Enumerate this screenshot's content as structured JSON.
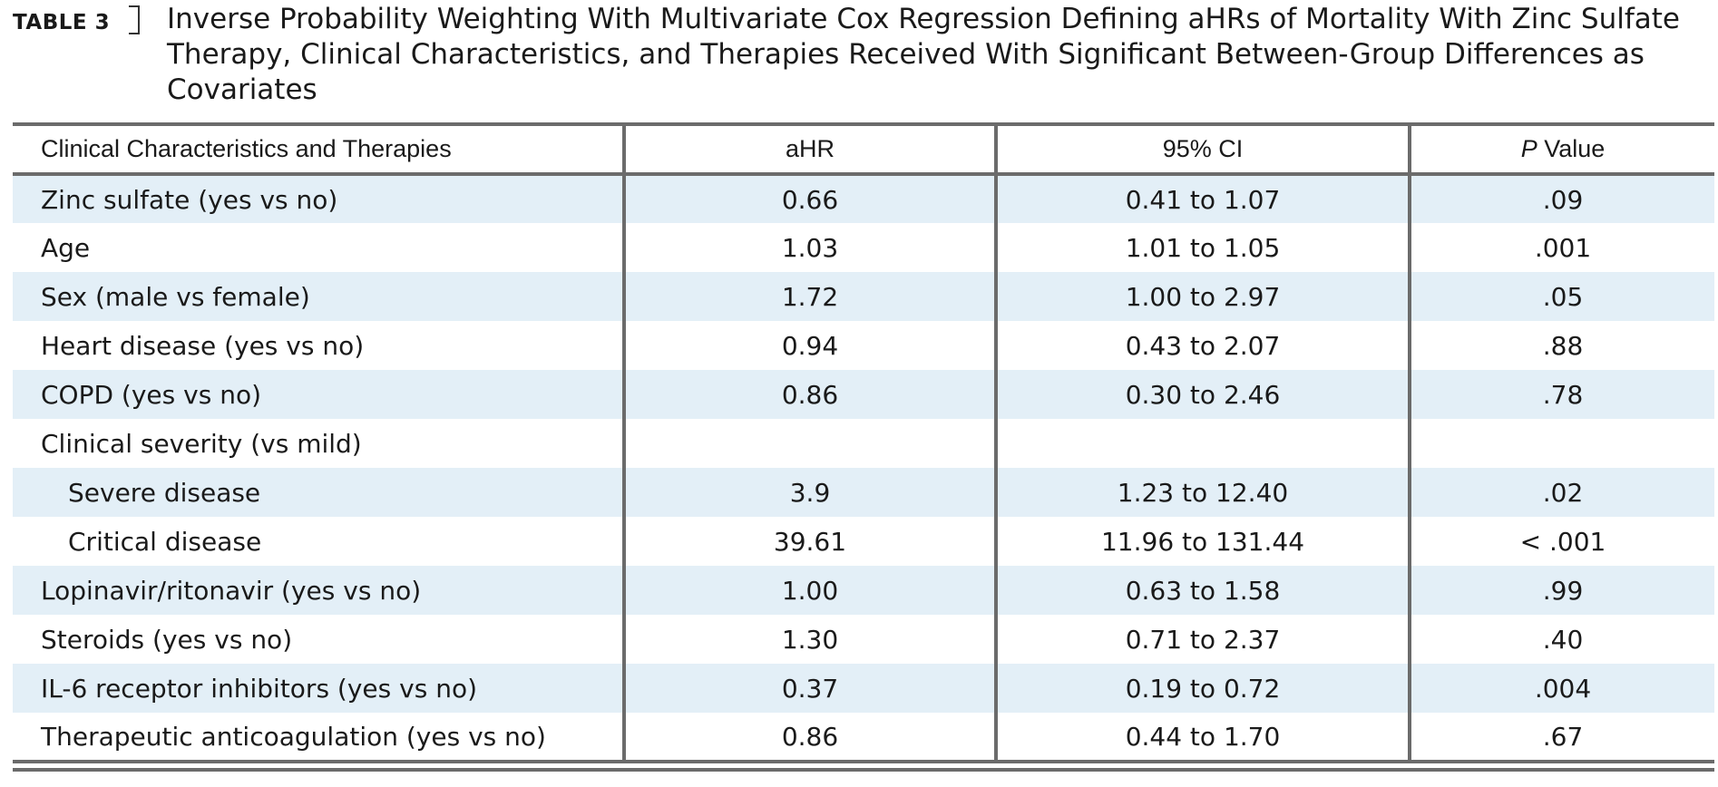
{
  "caption": {
    "label": "TABLE 3",
    "title": "Inverse Probability Weighting With Multivariate Cox Regression Defining aHRs of Mortality With Zinc Sulfate Therapy, Clinical Characteristics, and Therapies Received With Significant Between-Group Differences as Covariates"
  },
  "table": {
    "headers": {
      "characteristic": "Clinical Characteristics and Therapies",
      "ahr": "aHR",
      "ci": "95% CI",
      "pvalue_italic": "P",
      "pvalue_rest": " Value"
    },
    "rows": [
      {
        "label": "Zinc sulfate (yes vs no)",
        "ahr": "0.66",
        "ci": "0.41 to 1.07",
        "p": ".09"
      },
      {
        "label": "Age",
        "ahr": "1.03",
        "ci": "1.01 to 1.05",
        "p": ".001"
      },
      {
        "label": "Sex (male vs female)",
        "ahr": "1.72",
        "ci": "1.00 to 2.97",
        "p": ".05"
      },
      {
        "label": "Heart disease (yes vs no)",
        "ahr": "0.94",
        "ci": "0.43 to 2.07",
        "p": ".88"
      },
      {
        "label": "COPD (yes vs no)",
        "ahr": "0.86",
        "ci": "0.30 to 2.46",
        "p": ".78"
      },
      {
        "label": "Clinical severity (vs mild)",
        "ahr": "",
        "ci": "",
        "p": ""
      },
      {
        "label": "Severe disease",
        "ahr": "3.9",
        "ci": "1.23 to 12.40",
        "p": ".02"
      },
      {
        "label": "Critical disease",
        "ahr": "39.61",
        "ci": "11.96 to 131.44",
        "p": "< .001"
      },
      {
        "label": "Lopinavir/ritonavir (yes vs no)",
        "ahr": "1.00",
        "ci": "0.63 to 1.58",
        "p": ".99"
      },
      {
        "label": "Steroids (yes vs no)",
        "ahr": "1.30",
        "ci": "0.71 to 2.37",
        "p": ".40"
      },
      {
        "label": "IL-6 receptor inhibitors (yes vs no)",
        "ahr": "0.37",
        "ci": "0.19 to 0.72",
        "p": ".004"
      },
      {
        "label": "Therapeutic anticoagulation (yes vs no)",
        "ahr": "0.86",
        "ci": "0.44 to 1.70",
        "p": ".67"
      }
    ]
  },
  "colors": {
    "shade": "#e3eff7",
    "rule": "#6b6b6b",
    "text": "#1a1a1a"
  }
}
